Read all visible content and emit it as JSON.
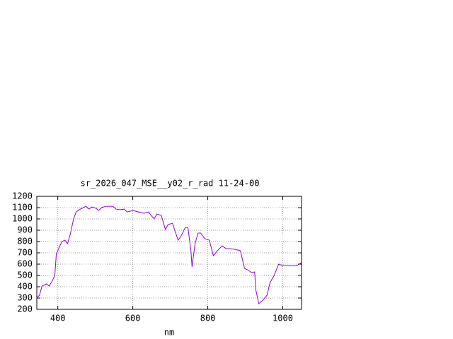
{
  "chart_data": {
    "type": "line",
    "title": "sr_2026_047_MSE__y02_r_rad 11-24-00",
    "x_label": "nm",
    "xlim": [
      344,
      1050
    ],
    "ylim": [
      200,
      1200
    ],
    "xticks": [
      400,
      600,
      800,
      1000
    ],
    "yticks": [
      200,
      300,
      400,
      500,
      600,
      700,
      800,
      900,
      1000,
      1100,
      1200
    ],
    "grid": true,
    "series": [
      {
        "color": "#9400d3",
        "x": [
          344,
          351,
          358,
          370,
          377,
          385,
          392,
          396,
          404,
          411,
          419,
          426,
          434,
          442,
          449,
          460,
          468,
          475,
          483,
          491,
          502,
          509,
          517,
          528,
          547,
          555,
          566,
          577,
          585,
          600,
          615,
          630,
          642,
          649,
          657,
          664,
          676,
          687,
          694,
          706,
          713,
          721,
          728,
          740,
          747,
          755,
          758,
          766,
          774,
          781,
          792,
          804,
          815,
          826,
          838,
          849,
          860,
          872,
          887,
          898,
          906,
          917,
          925,
          928,
          936,
          947,
          958,
          966,
          977,
          989,
          1000,
          1019,
          1038,
          1049
        ],
        "values": [
          300,
          325,
          406,
          425,
          406,
          450,
          500,
          688,
          750,
          800,
          812,
          781,
          875,
          1000,
          1062,
          1087,
          1100,
          1112,
          1087,
          1106,
          1094,
          1075,
          1100,
          1112,
          1112,
          1087,
          1081,
          1087,
          1062,
          1075,
          1062,
          1050,
          1062,
          1031,
          1000,
          1044,
          1031,
          906,
          950,
          962,
          887,
          812,
          844,
          925,
          925,
          719,
          575,
          781,
          875,
          875,
          825,
          812,
          675,
          719,
          762,
          737,
          737,
          731,
          719,
          562,
          550,
          525,
          531,
          375,
          250,
          281,
          325,
          437,
          500,
          600,
          587,
          587,
          587,
          612
        ]
      }
    ]
  }
}
